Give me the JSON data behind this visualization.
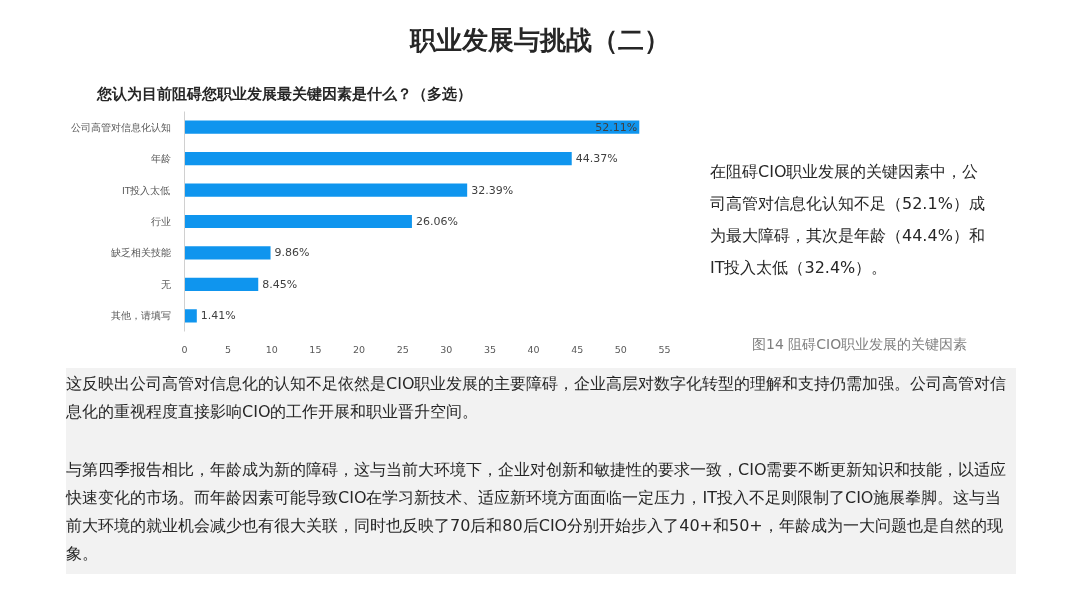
{
  "chart_data": {
    "type": "bar",
    "orientation": "horizontal",
    "title": "职业发展与挑战（二）",
    "subtitle": "您认为目前阻碍您职业发展最关键因素是什么？（多选）",
    "categories": [
      "公司高管对信息化认知",
      "年龄",
      "IT投入太低",
      "行业",
      "缺乏相关技能",
      "无",
      "其他，请填写"
    ],
    "values": [
      52.11,
      44.37,
      32.39,
      26.06,
      9.86,
      8.45,
      1.41
    ],
    "value_labels": [
      "52.11%",
      "44.37%",
      "32.39%",
      "26.06%",
      "9.86%",
      "8.45%",
      "1.41%"
    ],
    "color": "#0f95ee",
    "xlim": [
      0,
      55
    ],
    "xticks": [
      0,
      5,
      10,
      15,
      20,
      25,
      30,
      35,
      40,
      45,
      50,
      55
    ],
    "annotations": [
      "在阻碍CIO职业发展的关键因素中，公司高管对信息化认知不足（52.1%）成为最大障碍，其次是年龄（44.4%）和IT投入太低（32.4%）。",
      "图14 阻碍CIO职业发展的关键因素",
      "这反映出公司高管对信息化的认知不足依然是CIO职业发展的主要障碍，企业高层对数字化转型的理解和支持仍需加强。公司高管对信息化的重视程度直接影响CIO的工作开展和职业晋升空间。",
      "与第四季报告相比，年龄成为新的障碍，这与当前大环境下，企业对创新和敏捷性的要求一致，CIO需要不断更新知识和技能，以适应快速变化的市场。而年龄因素可能导致CIO在学习新技术、适应新环境方面面临一定压力，IT投入不足则限制了CIO施展拳脚。这与当前大环境的就业机会减少也有很大关联，同时也反映了70后和80后CIO分别开始步入了40+和50+，年龄成为一大问题也是自然的现象。"
    ]
  }
}
